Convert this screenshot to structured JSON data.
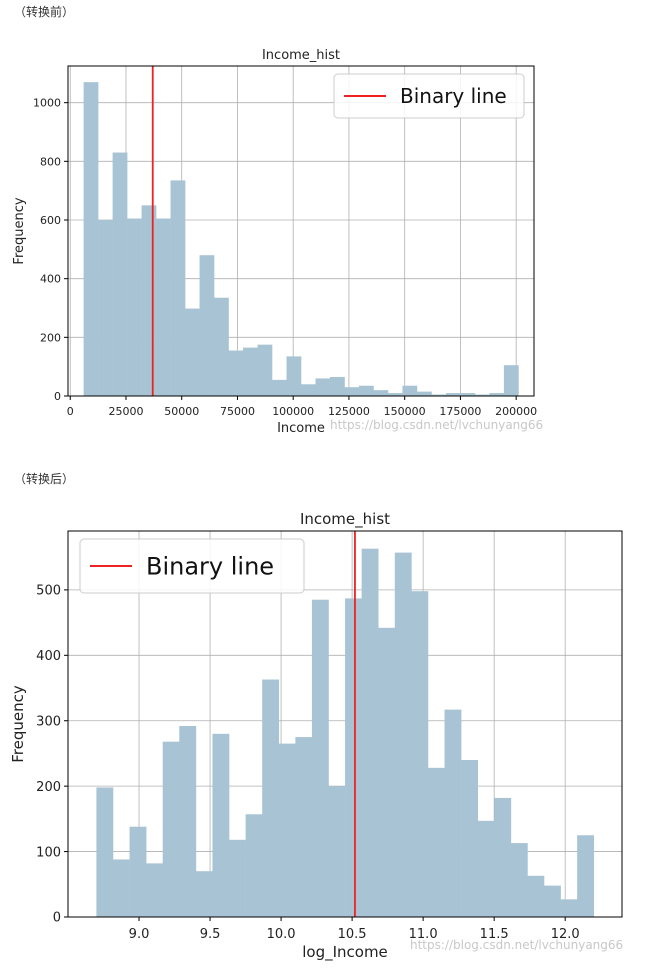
{
  "captions": {
    "before": "（转换前）",
    "after": "（转换后）"
  },
  "watermark": "https://blog.csdn.net/lvchunyang66",
  "colors": {
    "bar": "#a8c4d4",
    "binary_line": "#ee2222",
    "grid": "#b0b0b0",
    "axis": "#000000"
  },
  "chart_data": [
    {
      "type": "bar",
      "title": "Income_hist",
      "xlabel": "Income",
      "ylabel": "Frequency",
      "xlim": [
        -1000,
        208000
      ],
      "ylim": [
        0,
        1125
      ],
      "xticks": [
        0,
        25000,
        50000,
        75000,
        100000,
        125000,
        150000,
        175000,
        200000
      ],
      "xtick_labels": [
        "0",
        "25000",
        "50000",
        "75000",
        "100000",
        "125000",
        "150000",
        "175000",
        "200000"
      ],
      "yticks": [
        0,
        200,
        400,
        600,
        800,
        1000
      ],
      "ytick_labels": [
        "0",
        "200",
        "400",
        "600",
        "800",
        "1000"
      ],
      "bin_start": 6000,
      "bin_width": 6500,
      "values": [
        1070,
        600,
        830,
        605,
        650,
        605,
        735,
        298,
        480,
        335,
        155,
        165,
        175,
        55,
        135,
        40,
        60,
        65,
        30,
        35,
        20,
        10,
        35,
        15,
        5,
        10,
        10,
        5,
        10,
        105
      ],
      "binary_line_x": 37000,
      "legend": {
        "label": "Binary line",
        "position": "top-right"
      }
    },
    {
      "type": "bar",
      "title": "Income_hist",
      "xlabel": "log_Income",
      "ylabel": "Frequency",
      "xlim": [
        8.5,
        12.4
      ],
      "ylim": [
        0,
        590
      ],
      "xticks": [
        9.0,
        9.5,
        10.0,
        10.5,
        11.0,
        11.5,
        12.0
      ],
      "xtick_labels": [
        "9.0",
        "9.5",
        "10.0",
        "10.5",
        "11.0",
        "11.5",
        "12.0"
      ],
      "yticks": [
        0,
        100,
        200,
        300,
        400,
        500
      ],
      "ytick_labels": [
        "0",
        "100",
        "200",
        "300",
        "400",
        "500"
      ],
      "bin_start": 8.7,
      "bin_width": 0.1167,
      "values": [
        198,
        88,
        138,
        82,
        268,
        292,
        70,
        280,
        118,
        157,
        363,
        265,
        275,
        485,
        200,
        487,
        563,
        442,
        557,
        498,
        228,
        317,
        240,
        147,
        182,
        113,
        63,
        48,
        27,
        125
      ],
      "binary_line_x": 10.52,
      "legend": {
        "label": "Binary line",
        "position": "top-left"
      }
    }
  ]
}
